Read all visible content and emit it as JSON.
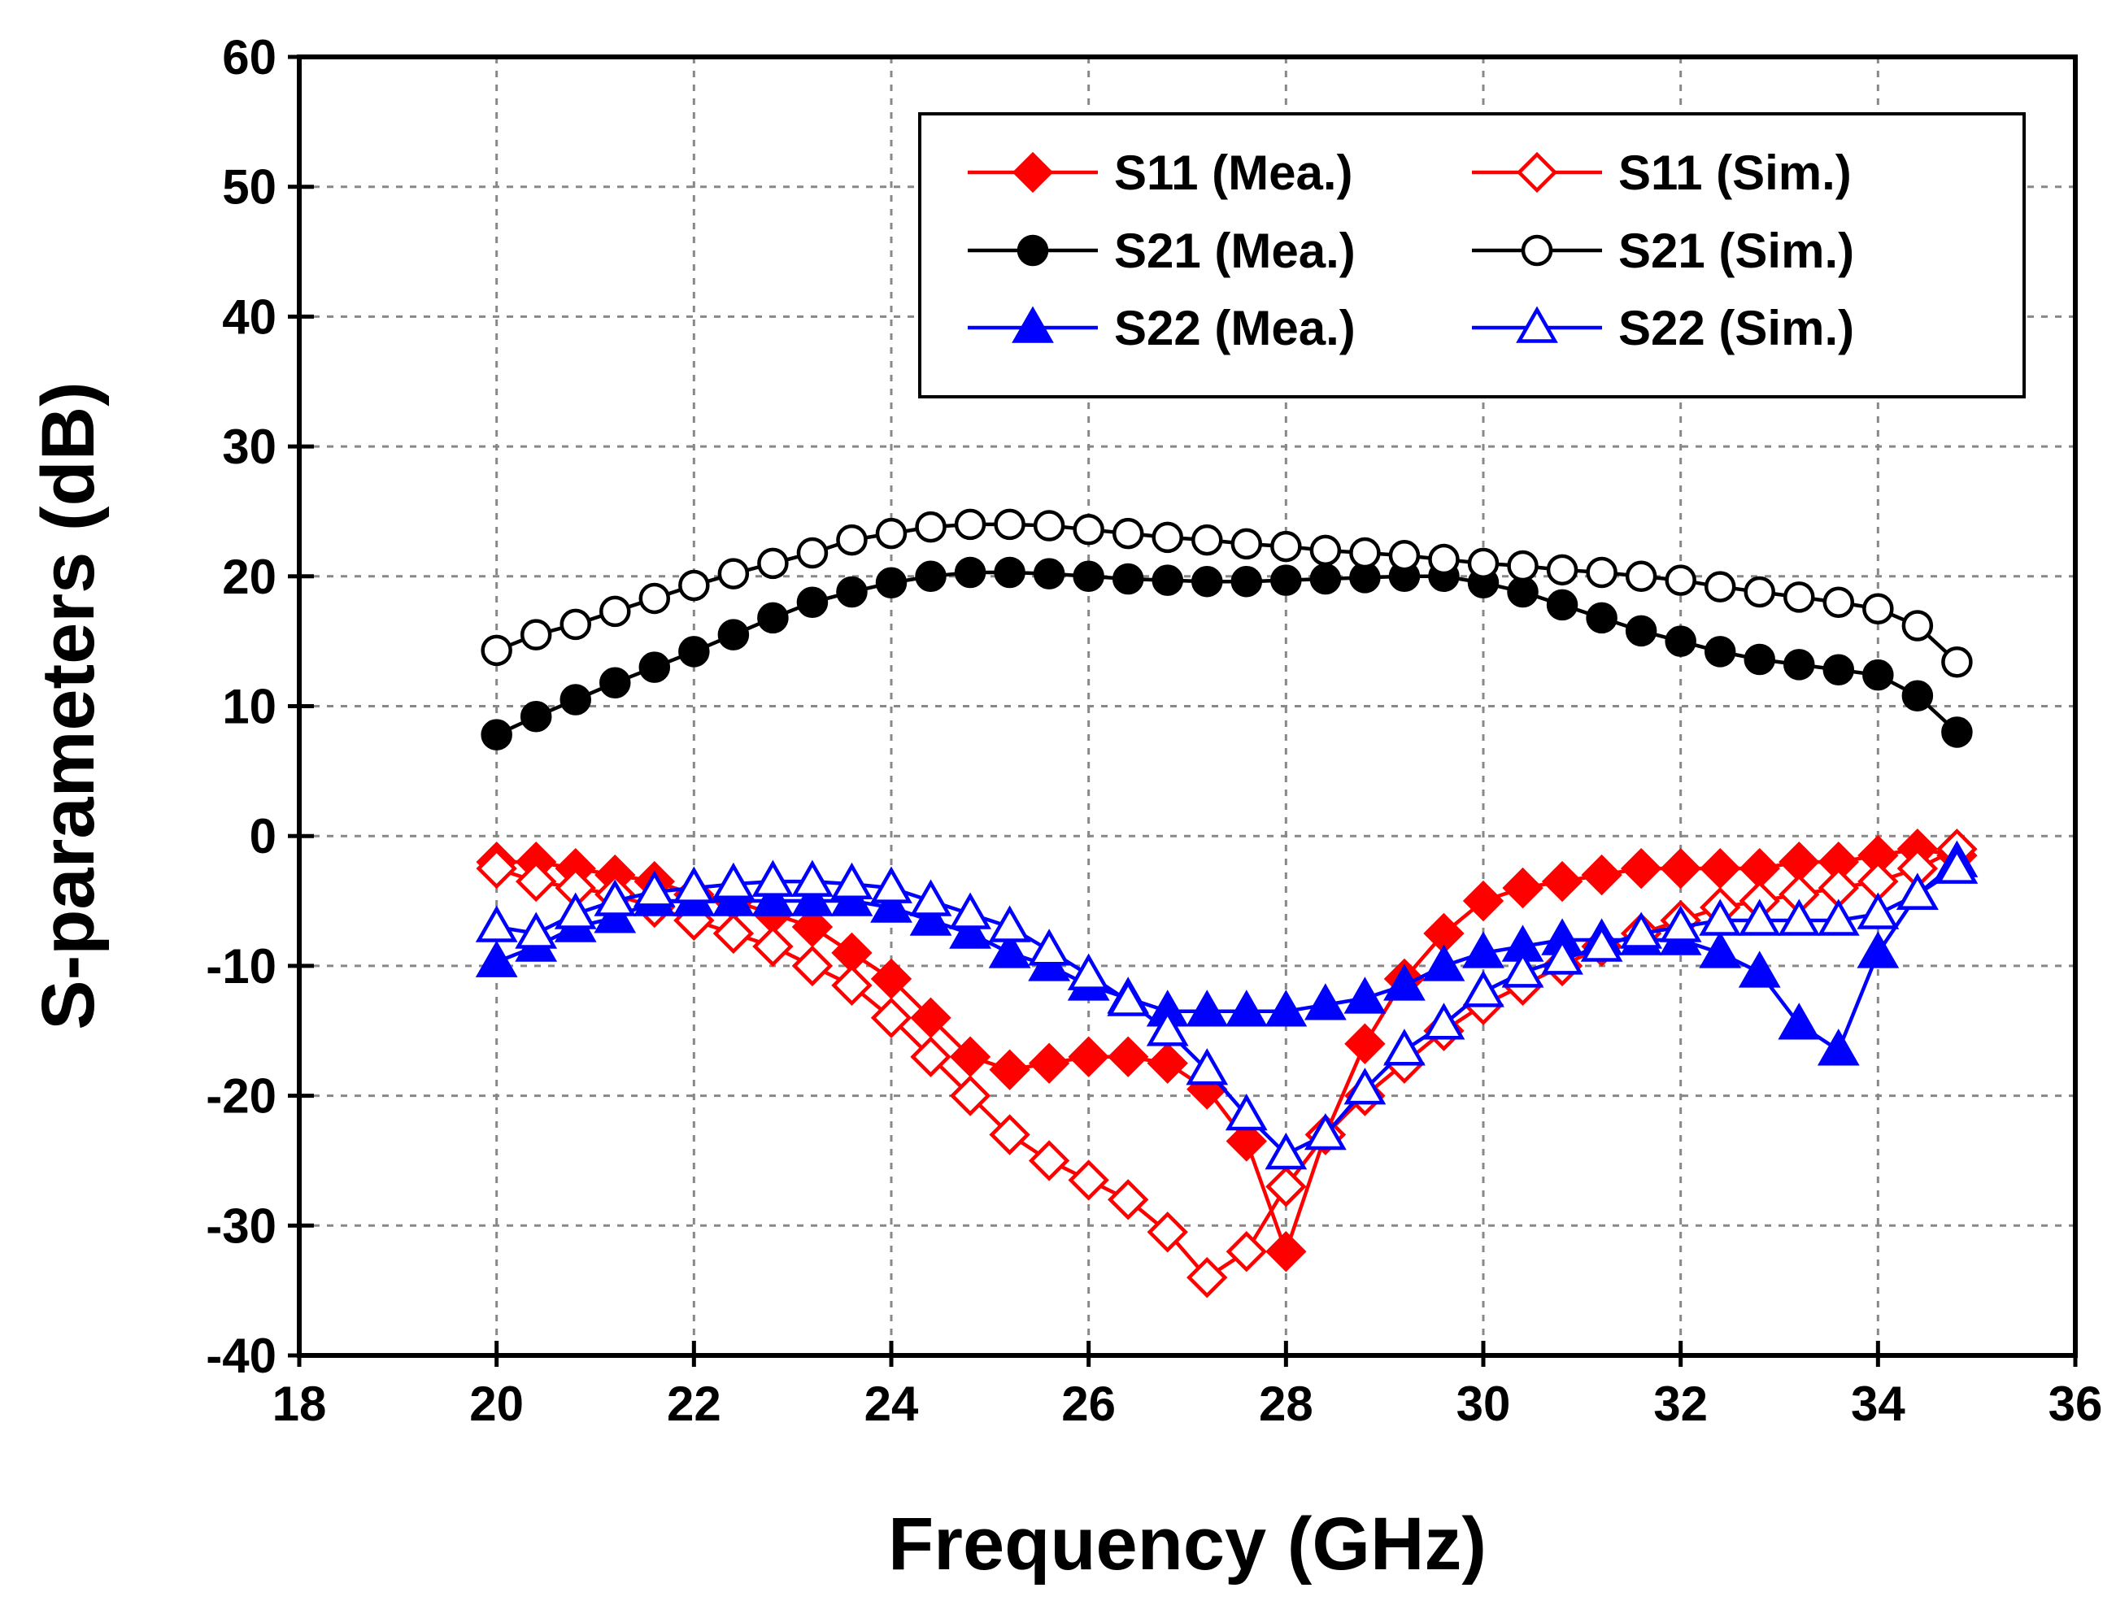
{
  "chart_data": {
    "type": "line",
    "title": "",
    "xlabel": "Frequency (GHz)",
    "ylabel": "S-parameters (dB)",
    "xlim": [
      18,
      36
    ],
    "ylim": [
      -40,
      60
    ],
    "xticks": [
      18,
      20,
      22,
      24,
      26,
      28,
      30,
      32,
      34,
      36
    ],
    "yticks": [
      -40,
      -30,
      -20,
      -10,
      0,
      10,
      20,
      30,
      40,
      50,
      60
    ],
    "grid": true,
    "legend_position": "top-right",
    "x": [
      20,
      20.4,
      20.8,
      21.2,
      21.6,
      22,
      22.4,
      22.8,
      23.2,
      23.6,
      24,
      24.4,
      24.8,
      25.2,
      25.6,
      26,
      26.4,
      26.8,
      27.2,
      27.6,
      28,
      28.4,
      28.8,
      29.2,
      29.6,
      30,
      30.4,
      30.8,
      31.2,
      31.6,
      32,
      32.4,
      32.8,
      33.2,
      33.6,
      34,
      34.4,
      34.8
    ],
    "series": [
      {
        "name": "S11 (Mea.)",
        "color": "#ff0000",
        "marker": "diamond",
        "filled": true,
        "values": [
          -2,
          -2,
          -2.5,
          -3,
          -3.5,
          -4.5,
          -5,
          -6,
          -7,
          -9,
          -11,
          -14,
          -17,
          -18,
          -17.5,
          -17,
          -17,
          -17.5,
          -19.5,
          -23.5,
          -32,
          -23,
          -16,
          -11,
          -7.5,
          -5,
          -4,
          -3.5,
          -3,
          -2.5,
          -2.5,
          -2.5,
          -2.5,
          -2,
          -2,
          -1.5,
          -1,
          -1.5
        ]
      },
      {
        "name": "S11 (Sim.)",
        "color": "#ff0000",
        "marker": "diamond",
        "filled": false,
        "values": [
          -2.5,
          -3.5,
          -4,
          -4.5,
          -5.5,
          -6.5,
          -7.5,
          -8.5,
          -10,
          -11.5,
          -14,
          -17,
          -20,
          -23,
          -25,
          -26.5,
          -28,
          -30.5,
          -34,
          -32,
          -27,
          -23,
          -20,
          -17.5,
          -15,
          -13,
          -11.5,
          -10,
          -8.5,
          -7.5,
          -6.5,
          -5.5,
          -5,
          -4.5,
          -4,
          -3.5,
          -2.5,
          -1
        ]
      },
      {
        "name": "S21 (Mea.)",
        "color": "#000000",
        "marker": "circle",
        "filled": true,
        "values": [
          7.8,
          9.2,
          10.5,
          11.8,
          13,
          14.2,
          15.5,
          16.8,
          18,
          18.8,
          19.5,
          20,
          20.3,
          20.3,
          20.2,
          20,
          19.8,
          19.7,
          19.6,
          19.6,
          19.7,
          19.8,
          19.9,
          20,
          20,
          19.5,
          18.8,
          17.8,
          16.8,
          15.8,
          15,
          14.2,
          13.6,
          13.2,
          12.8,
          12.4,
          10.8,
          8
        ]
      },
      {
        "name": "S21 (Sim.)",
        "color": "#000000",
        "marker": "circle",
        "filled": false,
        "values": [
          14.3,
          15.5,
          16.3,
          17.3,
          18.3,
          19.3,
          20.2,
          21,
          21.8,
          22.8,
          23.3,
          23.8,
          24,
          24,
          23.9,
          23.6,
          23.3,
          23,
          22.8,
          22.5,
          22.3,
          22,
          21.8,
          21.6,
          21.3,
          21,
          20.8,
          20.5,
          20.3,
          20,
          19.7,
          19.2,
          18.8,
          18.4,
          18,
          17.5,
          16.2,
          13.4
        ]
      },
      {
        "name": "S22 (Mea.)",
        "color": "#0000ff",
        "marker": "triangle",
        "filled": true,
        "values": [
          -9.7,
          -8.5,
          -7,
          -6.3,
          -5,
          -5,
          -5,
          -5,
          -5,
          -5,
          -5.5,
          -6.5,
          -7.5,
          -9,
          -10,
          -11.5,
          -12.5,
          -13.5,
          -13.5,
          -13.5,
          -13.5,
          -13,
          -12.5,
          -11.5,
          -10,
          -9,
          -8.5,
          -8,
          -8,
          -8,
          -8,
          -9,
          -10.5,
          -14.5,
          -16.5,
          -9,
          -4.5,
          -2
        ]
      },
      {
        "name": "S22 (Sim.)",
        "color": "#0000ff",
        "marker": "triangle",
        "filled": false,
        "values": [
          -7,
          -7.5,
          -6,
          -5,
          -4.3,
          -4,
          -3.7,
          -3.5,
          -3.5,
          -3.7,
          -4,
          -5,
          -6,
          -7,
          -8.8,
          -10.7,
          -12.7,
          -15,
          -18,
          -21.5,
          -24.5,
          -23,
          -19.5,
          -16.5,
          -14.5,
          -12,
          -10.5,
          -9.5,
          -8.5,
          -7.5,
          -7,
          -6.5,
          -6.5,
          -6.5,
          -6.5,
          -6,
          -4.5,
          -2.5
        ]
      }
    ]
  }
}
